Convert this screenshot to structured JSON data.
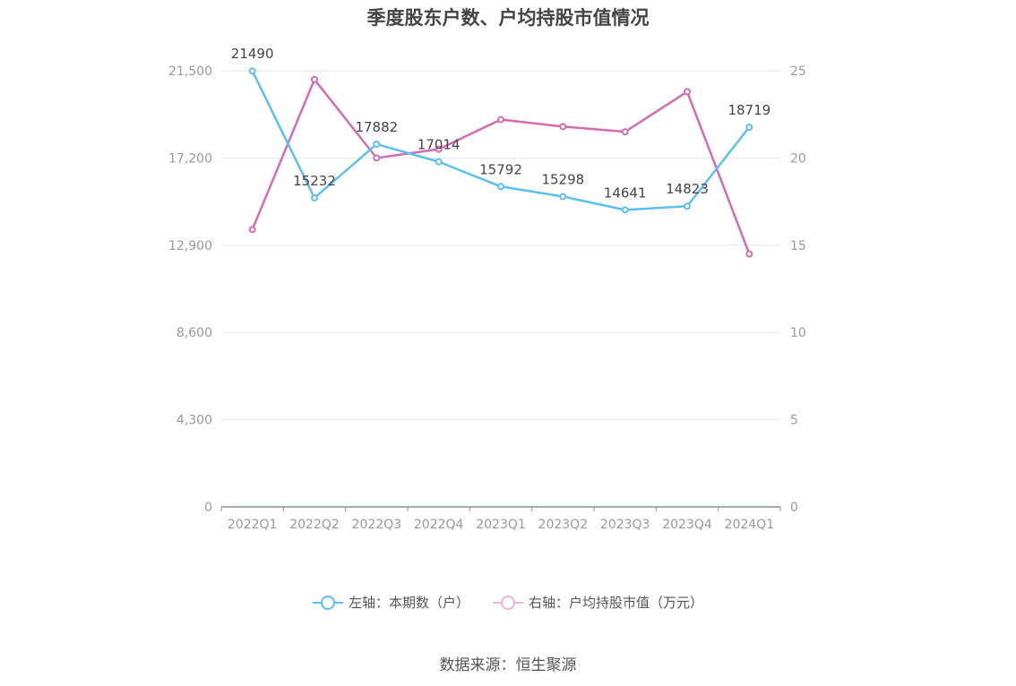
{
  "chart_data": {
    "type": "line",
    "title": "季度股东户数、户均持股市值情况",
    "categories": [
      "2022Q1",
      "2022Q2",
      "2022Q3",
      "2022Q4",
      "2023Q1",
      "2023Q2",
      "2023Q3",
      "2023Q4",
      "2024Q1"
    ],
    "left_axis": {
      "ticks": [
        "0",
        "4,300",
        "8,600",
        "12,900",
        "17,200",
        "21,500"
      ],
      "min": 0,
      "max": 21500
    },
    "right_axis": {
      "ticks": [
        "0",
        "5",
        "10",
        "15",
        "20",
        "25"
      ],
      "min": 0,
      "max": 25
    },
    "grid": true,
    "legend_position": "bottom",
    "series": [
      {
        "name": "左轴：本期数（户）",
        "axis": "left",
        "color": "#5bc0f0",
        "values": [
          21490,
          15232,
          17882,
          17014,
          15792,
          15298,
          14641,
          14823,
          18719
        ],
        "labels": [
          "21490",
          "15232",
          "17882",
          "17014",
          "15792",
          "15298",
          "14641",
          "14823",
          "18719"
        ]
      },
      {
        "name": "右轴：户均持股市值（万元）",
        "axis": "right",
        "color": "#d46bb0",
        "values": [
          15.9,
          24.5,
          20.0,
          20.5,
          22.2,
          21.8,
          21.5,
          23.8,
          14.5
        ]
      }
    ],
    "legend": [
      {
        "label": "左轴：本期数（户）",
        "color": "#5bc0f0"
      },
      {
        "label": "右轴：户均持股市值（万元）",
        "color": "#f0b3d6"
      }
    ]
  },
  "source_label": "数据来源：恒生聚源"
}
